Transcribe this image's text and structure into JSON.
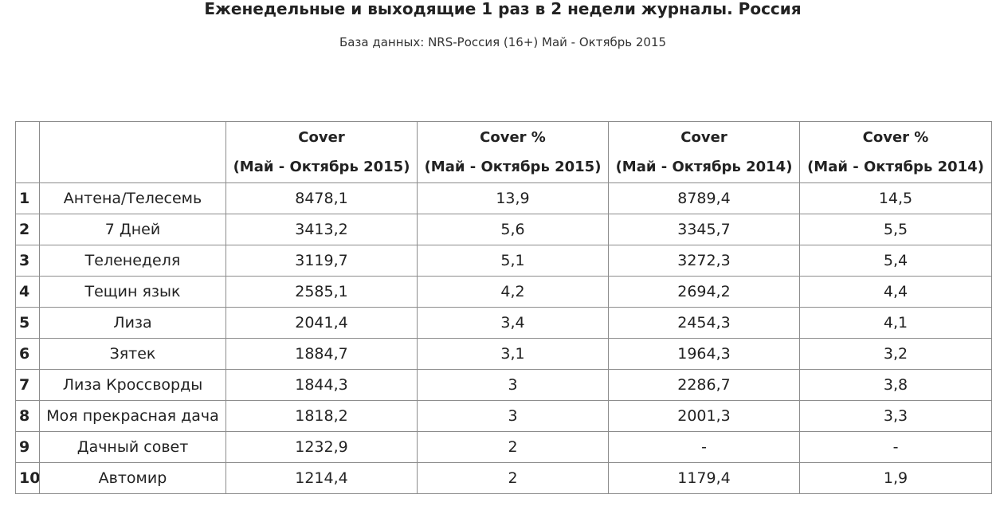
{
  "title": "Еженедельные и выходящие 1 раз в 2 недели журналы. Россия",
  "subtitle": "База данных: NRS-Россия (16+) Май - Октябрь 2015",
  "chart_data": {
    "type": "table",
    "title": "Еженедельные и выходящие 1 раз в 2 недели журналы. Россия",
    "subtitle": "База данных: NRS-Россия (16+) Май - Октябрь 2015",
    "columns": [
      {
        "line1": "",
        "line2": ""
      },
      {
        "line1": "",
        "line2": ""
      },
      {
        "line1": "Cover",
        "line2": "(Май - Октябрь 2015)"
      },
      {
        "line1": "Cover %",
        "line2": "(Май - Октябрь 2015)"
      },
      {
        "line1": "Cover",
        "line2": "(Май - Октябрь 2014)"
      },
      {
        "line1": "Cover %",
        "line2": "(Май - Октябрь 2014)"
      }
    ],
    "rows": [
      {
        "rank": "1",
        "name": "Антена/Телесемь",
        "cover_2015": "8478,1",
        "cover_pct_2015": "13,9",
        "cover_2014": "8789,4",
        "cover_pct_2014": "14,5"
      },
      {
        "rank": "2",
        "name": "7 Дней",
        "cover_2015": "3413,2",
        "cover_pct_2015": "5,6",
        "cover_2014": "3345,7",
        "cover_pct_2014": "5,5"
      },
      {
        "rank": "3",
        "name": "Теленеделя",
        "cover_2015": "3119,7",
        "cover_pct_2015": "5,1",
        "cover_2014": "3272,3",
        "cover_pct_2014": "5,4"
      },
      {
        "rank": "4",
        "name": "Тещин язык",
        "cover_2015": "2585,1",
        "cover_pct_2015": "4,2",
        "cover_2014": "2694,2",
        "cover_pct_2014": "4,4"
      },
      {
        "rank": "5",
        "name": "Лиза",
        "cover_2015": "2041,4",
        "cover_pct_2015": "3,4",
        "cover_2014": "2454,3",
        "cover_pct_2014": "4,1"
      },
      {
        "rank": "6",
        "name": "Зятек",
        "cover_2015": "1884,7",
        "cover_pct_2015": "3,1",
        "cover_2014": "1964,3",
        "cover_pct_2014": "3,2"
      },
      {
        "rank": "7",
        "name": "Лиза Кроссворды",
        "cover_2015": "1844,3",
        "cover_pct_2015": "3",
        "cover_2014": "2286,7",
        "cover_pct_2014": "3,8"
      },
      {
        "rank": "8",
        "name": "Моя прекрасная дача",
        "cover_2015": "1818,2",
        "cover_pct_2015": "3",
        "cover_2014": "2001,3",
        "cover_pct_2014": "3,3"
      },
      {
        "rank": "9",
        "name": "Дачный совет",
        "cover_2015": "1232,9",
        "cover_pct_2015": "2",
        "cover_2014": "-",
        "cover_pct_2014": "-"
      },
      {
        "rank": "10",
        "name": "Автомир",
        "cover_2015": "1214,4",
        "cover_pct_2015": "2",
        "cover_2014": "1179,4",
        "cover_pct_2014": "1,9"
      }
    ]
  }
}
